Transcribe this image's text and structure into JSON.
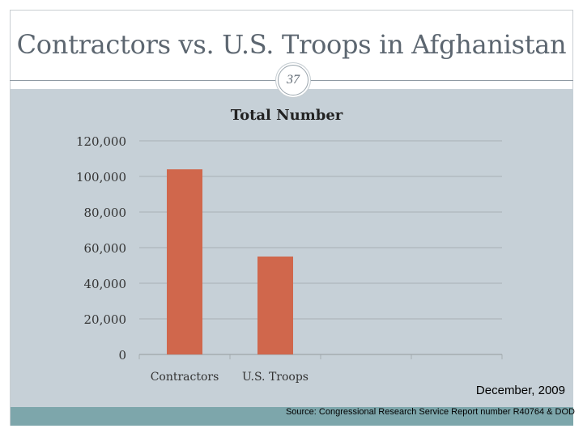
{
  "slide": {
    "title": "Contractors vs. U.S. Troops in Afghanistan",
    "page_number": "37",
    "date_note": "December, 2009",
    "source_note": "Source: Congressional Research Service Report number R40764 & DOD"
  },
  "colors": {
    "bar": "#d0674c",
    "panel": "#c6d0d7",
    "strip": "#7da6ab",
    "gridline": "#9ea5a9"
  },
  "chart_data": {
    "type": "bar",
    "title": "Total Number",
    "categories": [
      "Contractors",
      "U.S. Troops",
      "",
      ""
    ],
    "series": [
      {
        "name": "",
        "values": [
          104000,
          55000,
          null,
          null
        ]
      }
    ],
    "xlabel": "",
    "ylabel": "",
    "ylim": [
      0,
      120000
    ],
    "yticks": [
      0,
      20000,
      40000,
      60000,
      80000,
      100000,
      120000
    ],
    "ytick_labels": [
      "0",
      "20,000",
      "40,000",
      "60,000",
      "80,000",
      "100,000",
      "120,000"
    ],
    "grid": true,
    "legend": "none"
  }
}
